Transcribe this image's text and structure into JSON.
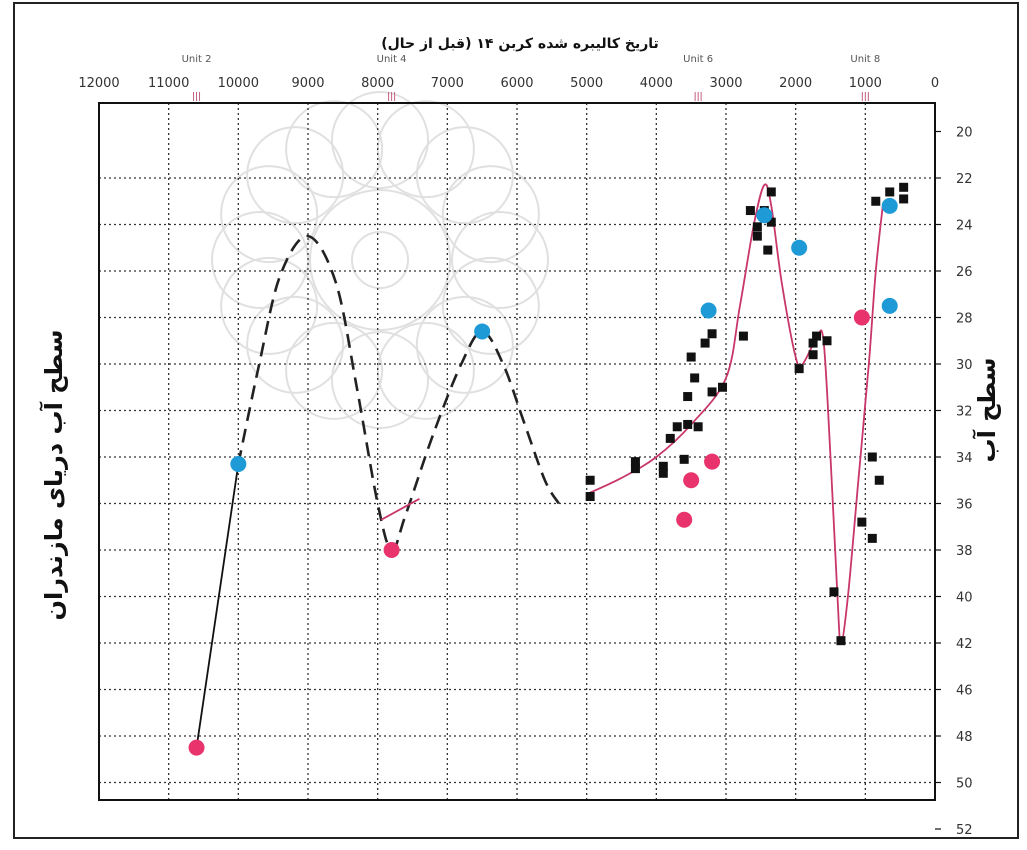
{
  "chart_data": {
    "type": "scatter",
    "title": "تاریخ کالیبره شده کربن ۱۴ (قبل از حال)",
    "ylabel_left": "سطح آب دریای مازندران",
    "ylabel_right": "سطح آب",
    "x_axis_position": "top",
    "x_reversed": true,
    "xlim": [
      12000,
      0
    ],
    "x_ticks": [
      "12000",
      "11000",
      "10000",
      "9000",
      "8000",
      "7000",
      "6000",
      "5000",
      "4000",
      "3000",
      "2000",
      "1000",
      "0"
    ],
    "y_axis_position": "right",
    "y_inverted": true,
    "ylim": [
      20,
      52
    ],
    "y_ticks": [
      "20",
      "22",
      "24",
      "26",
      "28",
      "30",
      "32",
      "34",
      "36",
      "38",
      "40",
      "42",
      "46",
      "48",
      "50",
      "52"
    ],
    "grid": true,
    "unit_labels": [
      {
        "text": "Unit 2",
        "x": 10600
      },
      {
        "text": "Unit 4",
        "x": 7800
      },
      {
        "text": "Unit 6",
        "x": 3400
      },
      {
        "text": "Unit 8",
        "x": 1000
      }
    ],
    "series": [
      {
        "marker": "square",
        "color": "#111111",
        "points": [
          [
            4950,
            35.0
          ],
          [
            4950,
            35.7
          ],
          [
            4300,
            34.2
          ],
          [
            4300,
            34.5
          ],
          [
            3900,
            34.4
          ],
          [
            3900,
            34.7
          ],
          [
            3800,
            33.2
          ],
          [
            3700,
            32.7
          ],
          [
            3600,
            34.1
          ],
          [
            3550,
            32.6
          ],
          [
            3550,
            31.4
          ],
          [
            3500,
            29.7
          ],
          [
            3450,
            30.6
          ],
          [
            3400,
            32.7
          ],
          [
            3300,
            29.1
          ],
          [
            3200,
            28.7
          ],
          [
            3200,
            31.2
          ],
          [
            3050,
            31.0
          ],
          [
            2750,
            28.8
          ],
          [
            2650,
            23.4
          ],
          [
            2550,
            24.1
          ],
          [
            2550,
            24.5
          ],
          [
            2450,
            23.4
          ],
          [
            2400,
            25.1
          ],
          [
            2350,
            22.6
          ],
          [
            2350,
            23.9
          ],
          [
            1950,
            30.2
          ],
          [
            1750,
            29.6
          ],
          [
            1750,
            29.1
          ],
          [
            1700,
            28.8
          ],
          [
            1550,
            29.0
          ],
          [
            1450,
            39.8
          ],
          [
            1350,
            41.9
          ],
          [
            1050,
            36.8
          ],
          [
            900,
            37.5
          ],
          [
            900,
            34.0
          ],
          [
            850,
            23.0
          ],
          [
            800,
            35.0
          ],
          [
            650,
            22.6
          ],
          [
            450,
            22.4
          ],
          [
            450,
            22.9
          ]
        ]
      },
      {
        "marker": "circle",
        "color": "#1e9bd7",
        "points": [
          [
            10000,
            34.3
          ],
          [
            6500,
            28.6
          ],
          [
            3250,
            27.7
          ],
          [
            2450,
            23.6
          ],
          [
            1950,
            25.0
          ],
          [
            650,
            23.2
          ],
          [
            650,
            27.5
          ]
        ]
      },
      {
        "marker": "circle",
        "color": "#e8336d",
        "points": [
          [
            10600,
            51.0
          ],
          [
            7800,
            38.0
          ],
          [
            3600,
            36.7
          ],
          [
            3500,
            35.0
          ],
          [
            3200,
            34.2
          ],
          [
            1050,
            28.0
          ]
        ]
      }
    ],
    "curves": [
      {
        "style": "solid",
        "color": "#111111",
        "points": [
          [
            10600,
            51.0
          ],
          [
            10000,
            34.3
          ]
        ]
      },
      {
        "style": "dashed",
        "color": "#222222",
        "points": [
          [
            10000,
            34.3
          ],
          [
            9700,
            30
          ],
          [
            9400,
            26.2
          ],
          [
            9000,
            24.5
          ],
          [
            8600,
            26.5
          ],
          [
            8300,
            31
          ],
          [
            8000,
            36
          ],
          [
            7800,
            38.0
          ],
          [
            7600,
            36.5
          ],
          [
            7200,
            33
          ],
          [
            6800,
            30
          ],
          [
            6500,
            28.6
          ],
          [
            6200,
            30
          ],
          [
            5900,
            32.5
          ],
          [
            5600,
            35
          ],
          [
            5400,
            36
          ]
        ]
      },
      {
        "style": "solid",
        "color": "#c8366b",
        "points": [
          [
            7950,
            36.7
          ],
          [
            7400,
            35.8
          ]
        ]
      },
      {
        "style": "solid",
        "color": "#c8366b",
        "points": [
          [
            5000,
            35.6
          ],
          [
            4500,
            34.9
          ],
          [
            4000,
            34.0
          ],
          [
            3500,
            32.6
          ],
          [
            3000,
            30.6
          ],
          [
            2800,
            27.5
          ],
          [
            2600,
            24
          ],
          [
            2450,
            22.3
          ],
          [
            2350,
            23.2
          ],
          [
            2200,
            26.5
          ],
          [
            2000,
            29.7
          ],
          [
            1900,
            30.0
          ],
          [
            1700,
            28.9
          ],
          [
            1600,
            29.0
          ],
          [
            1500,
            34
          ],
          [
            1400,
            40
          ],
          [
            1350,
            42
          ],
          [
            1250,
            40
          ],
          [
            1100,
            35
          ],
          [
            950,
            30
          ],
          [
            850,
            26
          ],
          [
            750,
            23.2
          ]
        ]
      }
    ]
  }
}
